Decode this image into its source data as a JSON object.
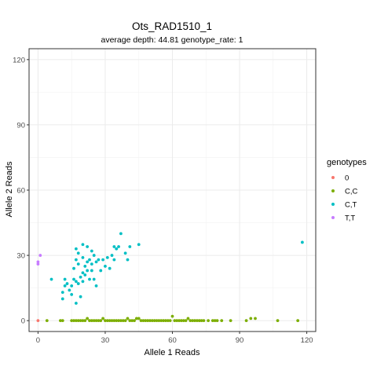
{
  "chart_data": {
    "type": "scatter",
    "title": "Ots_RAD1510_1",
    "subtitle": "average depth:  44.81  genotype_rate:  1",
    "xlabel": "Allele 1 Reads",
    "ylabel": "Allele 2 Reads",
    "xlim": [
      -4,
      124
    ],
    "ylim": [
      -5,
      125
    ],
    "x_ticks": [
      0,
      30,
      60,
      90,
      120
    ],
    "y_ticks": [
      0,
      30,
      60,
      90,
      120
    ],
    "grid": true,
    "legend_title": "genotypes",
    "legend_position": "right",
    "series": [
      {
        "name": "0",
        "color": "#F8766D",
        "points": [
          [
            0,
            0
          ]
        ]
      },
      {
        "name": "C,C",
        "color": "#7CAE00",
        "points": [
          [
            4,
            0
          ],
          [
            10,
            0
          ],
          [
            11,
            0
          ],
          [
            15,
            0
          ],
          [
            16,
            0
          ],
          [
            17,
            0
          ],
          [
            18,
            0
          ],
          [
            19,
            0
          ],
          [
            20,
            0
          ],
          [
            21,
            0
          ],
          [
            22,
            1
          ],
          [
            23,
            0
          ],
          [
            24,
            0
          ],
          [
            25,
            0
          ],
          [
            26,
            0
          ],
          [
            27,
            0
          ],
          [
            28,
            0
          ],
          [
            29,
            1
          ],
          [
            30,
            0
          ],
          [
            31,
            0
          ],
          [
            32,
            0
          ],
          [
            33,
            0
          ],
          [
            34,
            0
          ],
          [
            35,
            0
          ],
          [
            36,
            0
          ],
          [
            37,
            0
          ],
          [
            38,
            0
          ],
          [
            39,
            0
          ],
          [
            40,
            1
          ],
          [
            41,
            0
          ],
          [
            42,
            0
          ],
          [
            43,
            0
          ],
          [
            44,
            1
          ],
          [
            45,
            1
          ],
          [
            46,
            0
          ],
          [
            47,
            0
          ],
          [
            48,
            0
          ],
          [
            49,
            0
          ],
          [
            50,
            0
          ],
          [
            51,
            0
          ],
          [
            52,
            0
          ],
          [
            53,
            0
          ],
          [
            54,
            0
          ],
          [
            55,
            0
          ],
          [
            56,
            0
          ],
          [
            57,
            0
          ],
          [
            58,
            0
          ],
          [
            59,
            0
          ],
          [
            60,
            2
          ],
          [
            61,
            0
          ],
          [
            62,
            0
          ],
          [
            63,
            0
          ],
          [
            64,
            0
          ],
          [
            65,
            0
          ],
          [
            66,
            0
          ],
          [
            67,
            1
          ],
          [
            68,
            0
          ],
          [
            69,
            0
          ],
          [
            70,
            0
          ],
          [
            71,
            0
          ],
          [
            72,
            0
          ],
          [
            73,
            0
          ],
          [
            74,
            0
          ],
          [
            76,
            0
          ],
          [
            78,
            0
          ],
          [
            79,
            0
          ],
          [
            80,
            0
          ],
          [
            82,
            0
          ],
          [
            86,
            0
          ],
          [
            93,
            0
          ],
          [
            95,
            1
          ],
          [
            97,
            1
          ],
          [
            107,
            0
          ],
          [
            116,
            0
          ]
        ]
      },
      {
        "name": "C,T",
        "color": "#00BFC4",
        "points": [
          [
            6,
            19
          ],
          [
            11,
            13
          ],
          [
            11,
            10
          ],
          [
            12,
            19
          ],
          [
            12,
            16
          ],
          [
            13,
            17
          ],
          [
            14,
            14
          ],
          [
            15,
            16
          ],
          [
            15,
            12
          ],
          [
            16,
            24
          ],
          [
            16,
            19
          ],
          [
            17,
            33
          ],
          [
            17,
            28
          ],
          [
            17,
            18
          ],
          [
            17,
            8
          ],
          [
            18,
            31
          ],
          [
            18,
            26
          ],
          [
            18,
            17
          ],
          [
            19,
            20
          ],
          [
            19,
            11
          ],
          [
            20,
            35
          ],
          [
            20,
            29
          ],
          [
            20,
            22
          ],
          [
            20,
            18
          ],
          [
            21,
            25
          ],
          [
            21,
            21
          ],
          [
            22,
            34
          ],
          [
            22,
            27
          ],
          [
            22,
            23
          ],
          [
            23,
            28
          ],
          [
            23,
            19
          ],
          [
            24,
            32
          ],
          [
            24,
            26
          ],
          [
            24,
            23
          ],
          [
            25,
            30
          ],
          [
            25,
            19
          ],
          [
            26,
            27
          ],
          [
            26,
            16
          ],
          [
            27,
            28
          ],
          [
            28,
            23
          ],
          [
            29,
            28
          ],
          [
            30,
            25
          ],
          [
            31,
            29
          ],
          [
            32,
            24
          ],
          [
            33,
            30
          ],
          [
            34,
            34
          ],
          [
            34,
            28
          ],
          [
            35,
            33
          ],
          [
            36,
            34
          ],
          [
            37,
            40
          ],
          [
            39,
            31
          ],
          [
            40,
            28
          ],
          [
            41,
            34
          ],
          [
            45,
            35
          ],
          [
            118,
            36
          ]
        ]
      },
      {
        "name": "T,T",
        "color": "#C77CFF",
        "points": [
          [
            0,
            26
          ],
          [
            0,
            27
          ],
          [
            1,
            30
          ]
        ]
      }
    ]
  }
}
